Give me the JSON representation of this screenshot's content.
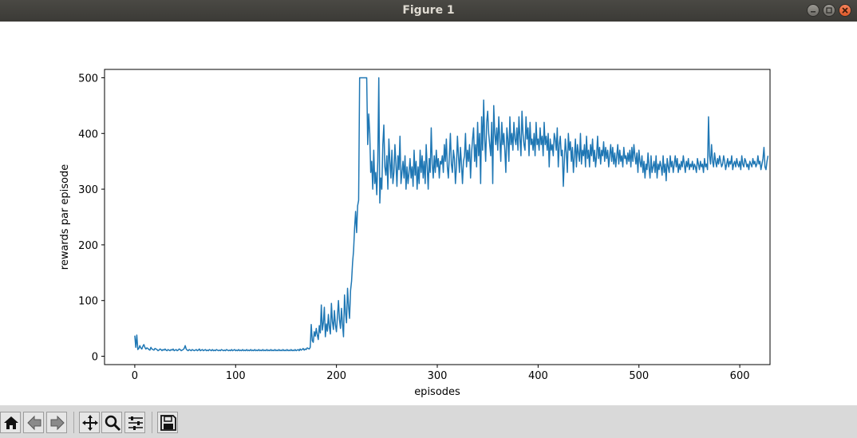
{
  "window": {
    "title": "Figure 1"
  },
  "toolbar": {
    "buttons": [
      {
        "name": "home-icon"
      },
      {
        "name": "back-icon"
      },
      {
        "name": "forward-icon"
      },
      {
        "name": "pan-icon"
      },
      {
        "name": "zoom-icon"
      },
      {
        "name": "configure-subplots-icon"
      },
      {
        "name": "save-icon"
      }
    ]
  },
  "chart_data": {
    "type": "line",
    "title": "",
    "xlabel": "episodes",
    "ylabel": "rewards par episode",
    "xlim": [
      -30,
      630
    ],
    "ylim": [
      -15,
      515
    ],
    "xticks": [
      0,
      100,
      200,
      300,
      400,
      500,
      600
    ],
    "yticks": [
      0,
      100,
      200,
      300,
      400,
      500
    ],
    "grid": false,
    "line_color": "#1f77b4",
    "series": [
      {
        "name": "",
        "x_start": 0,
        "x_step": 1,
        "values": [
          37,
          16,
          38,
          12,
          14,
          19,
          15,
          13,
          18,
          21,
          16,
          13,
          15,
          14,
          12,
          11,
          16,
          13,
          12,
          11,
          14,
          13,
          12,
          10,
          11,
          13,
          12,
          10,
          12,
          11,
          13,
          11,
          10,
          12,
          11,
          10,
          12,
          11,
          13,
          10,
          11,
          12,
          10,
          11,
          13,
          12,
          10,
          11,
          12,
          14,
          19,
          13,
          11,
          10,
          12,
          11,
          10,
          12,
          11,
          10,
          11,
          12,
          10,
          11,
          13,
          10,
          11,
          12,
          10,
          11,
          12,
          10,
          11,
          10,
          12,
          11,
          10,
          12,
          10,
          11,
          10,
          12,
          11,
          10,
          11,
          10,
          12,
          11,
          10,
          11,
          10,
          12,
          11,
          10,
          11,
          10,
          12,
          10,
          11,
          12,
          10,
          11,
          10,
          12,
          10,
          11,
          10,
          12,
          10,
          11,
          10,
          12,
          10,
          11,
          10,
          12,
          10,
          11,
          10,
          12,
          10,
          11,
          10,
          12,
          10,
          11,
          10,
          12,
          10,
          11,
          10,
          12,
          10,
          11,
          10,
          12,
          10,
          11,
          10,
          12,
          10,
          11,
          10,
          12,
          10,
          11,
          10,
          12,
          10,
          11,
          10,
          12,
          10,
          11,
          10,
          12,
          10,
          11,
          10,
          12,
          10,
          11,
          12,
          10,
          13,
          11,
          12,
          14,
          11,
          13,
          12,
          15,
          14,
          13,
          16,
          57,
          28,
          25,
          44,
          36,
          50,
          38,
          30,
          55,
          42,
          92,
          47,
          60,
          88,
          35,
          58,
          45,
          75,
          52,
          40,
          95,
          62,
          48,
          82,
          56,
          44,
          72,
          100,
          66,
          50,
          86,
          58,
          35,
          110,
          78,
          60,
          122,
          90,
          68,
          118,
          135,
          168,
          190,
          230,
          260,
          222,
          270,
          280,
          500,
          500,
          500,
          500,
          500,
          500,
          500,
          500,
          380,
          435,
          400,
          330,
          350,
          300,
          370,
          310,
          330,
          290,
          350,
          500,
          275,
          320,
          300,
          380,
          415,
          340,
          325,
          360,
          300,
          390,
          350,
          320,
          370,
          310,
          330,
          380,
          345,
          305,
          360,
          335,
          395,
          310,
          330,
          350,
          320,
          360,
          300,
          340,
          310,
          330,
          355,
          320,
          340,
          305,
          370,
          325,
          350,
          300,
          340,
          310,
          370,
          330,
          360,
          320,
          350,
          310,
          380,
          340,
          300,
          355,
          330,
          410,
          345,
          320,
          360,
          330,
          370,
          340,
          355,
          320,
          350,
          345,
          360,
          330,
          380,
          350,
          390,
          340,
          320,
          360,
          400,
          345,
          330,
          370,
          355,
          310,
          340,
          395,
          360,
          330,
          375,
          345,
          310,
          350,
          360,
          400,
          340,
          370,
          350,
          380,
          320,
          365,
          390,
          410,
          350,
          380,
          340,
          420,
          360,
          400,
          310,
          430,
          370,
          460,
          390,
          350,
          420,
          440,
          400,
          380,
          360,
          420,
          310,
          450,
          400,
          380,
          410,
          370,
          430,
          390,
          350,
          420,
          380,
          400,
          370,
          330,
          410,
          390,
          350,
          430,
          380,
          400,
          370,
          420,
          390,
          380,
          410,
          370,
          430,
          390,
          360,
          440,
          400,
          380,
          370,
          430,
          390,
          410,
          360,
          420,
          380,
          390,
          370,
          400,
          360,
          420,
          380,
          390,
          370,
          410,
          380,
          395,
          360,
          420,
          380,
          395,
          370,
          400,
          340,
          390,
          370,
          380,
          360,
          400,
          390,
          370,
          410,
          340,
          380,
          395,
          360,
          370,
          305,
          350,
          390,
          365,
          330,
          400,
          370,
          385,
          350,
          375,
          330,
          360,
          390,
          340,
          380,
          365,
          350,
          400,
          345,
          370,
          360,
          380,
          340,
          395,
          355,
          370,
          340,
          380,
          360,
          390,
          350,
          370,
          340,
          360,
          395,
          355,
          375,
          345,
          370,
          360,
          385,
          350,
          375,
          355,
          370,
          340,
          360,
          380,
          350,
          375,
          345,
          365,
          340,
          360,
          380,
          345,
          370,
          350,
          360,
          340,
          375,
          355,
          360,
          345,
          365,
          350,
          370,
          340,
          375,
          350,
          380,
          360,
          345,
          365,
          330,
          370,
          350,
          340,
          360,
          330,
          350,
          320,
          345,
          335,
          365,
          340,
          320,
          360,
          330,
          340,
          350,
          330,
          360,
          320,
          345,
          335,
          350,
          340,
          325,
          360,
          330,
          345,
          315,
          355,
          340,
          330,
          360,
          340,
          350,
          330,
          345,
          360,
          340,
          355,
          330,
          345,
          335,
          350,
          340,
          360,
          345,
          330,
          350,
          340,
          355,
          335,
          345,
          340,
          350,
          335,
          345,
          340,
          330,
          355,
          345,
          335,
          350,
          340,
          345,
          330,
          355,
          340,
          345,
          335,
          430,
          360,
          345,
          380,
          350,
          340,
          365,
          350,
          340,
          355,
          345,
          360,
          350,
          340,
          345,
          360,
          350,
          335,
          345,
          355,
          340,
          350,
          345,
          360,
          335,
          345,
          350,
          340,
          355,
          345,
          340,
          350,
          335,
          360,
          345,
          340,
          355,
          350,
          340,
          345,
          335,
          350,
          345,
          340,
          355,
          345,
          350,
          340,
          345,
          360,
          345,
          350,
          335,
          345,
          355,
          375,
          340,
          335,
          350,
          360
        ]
      }
    ]
  }
}
